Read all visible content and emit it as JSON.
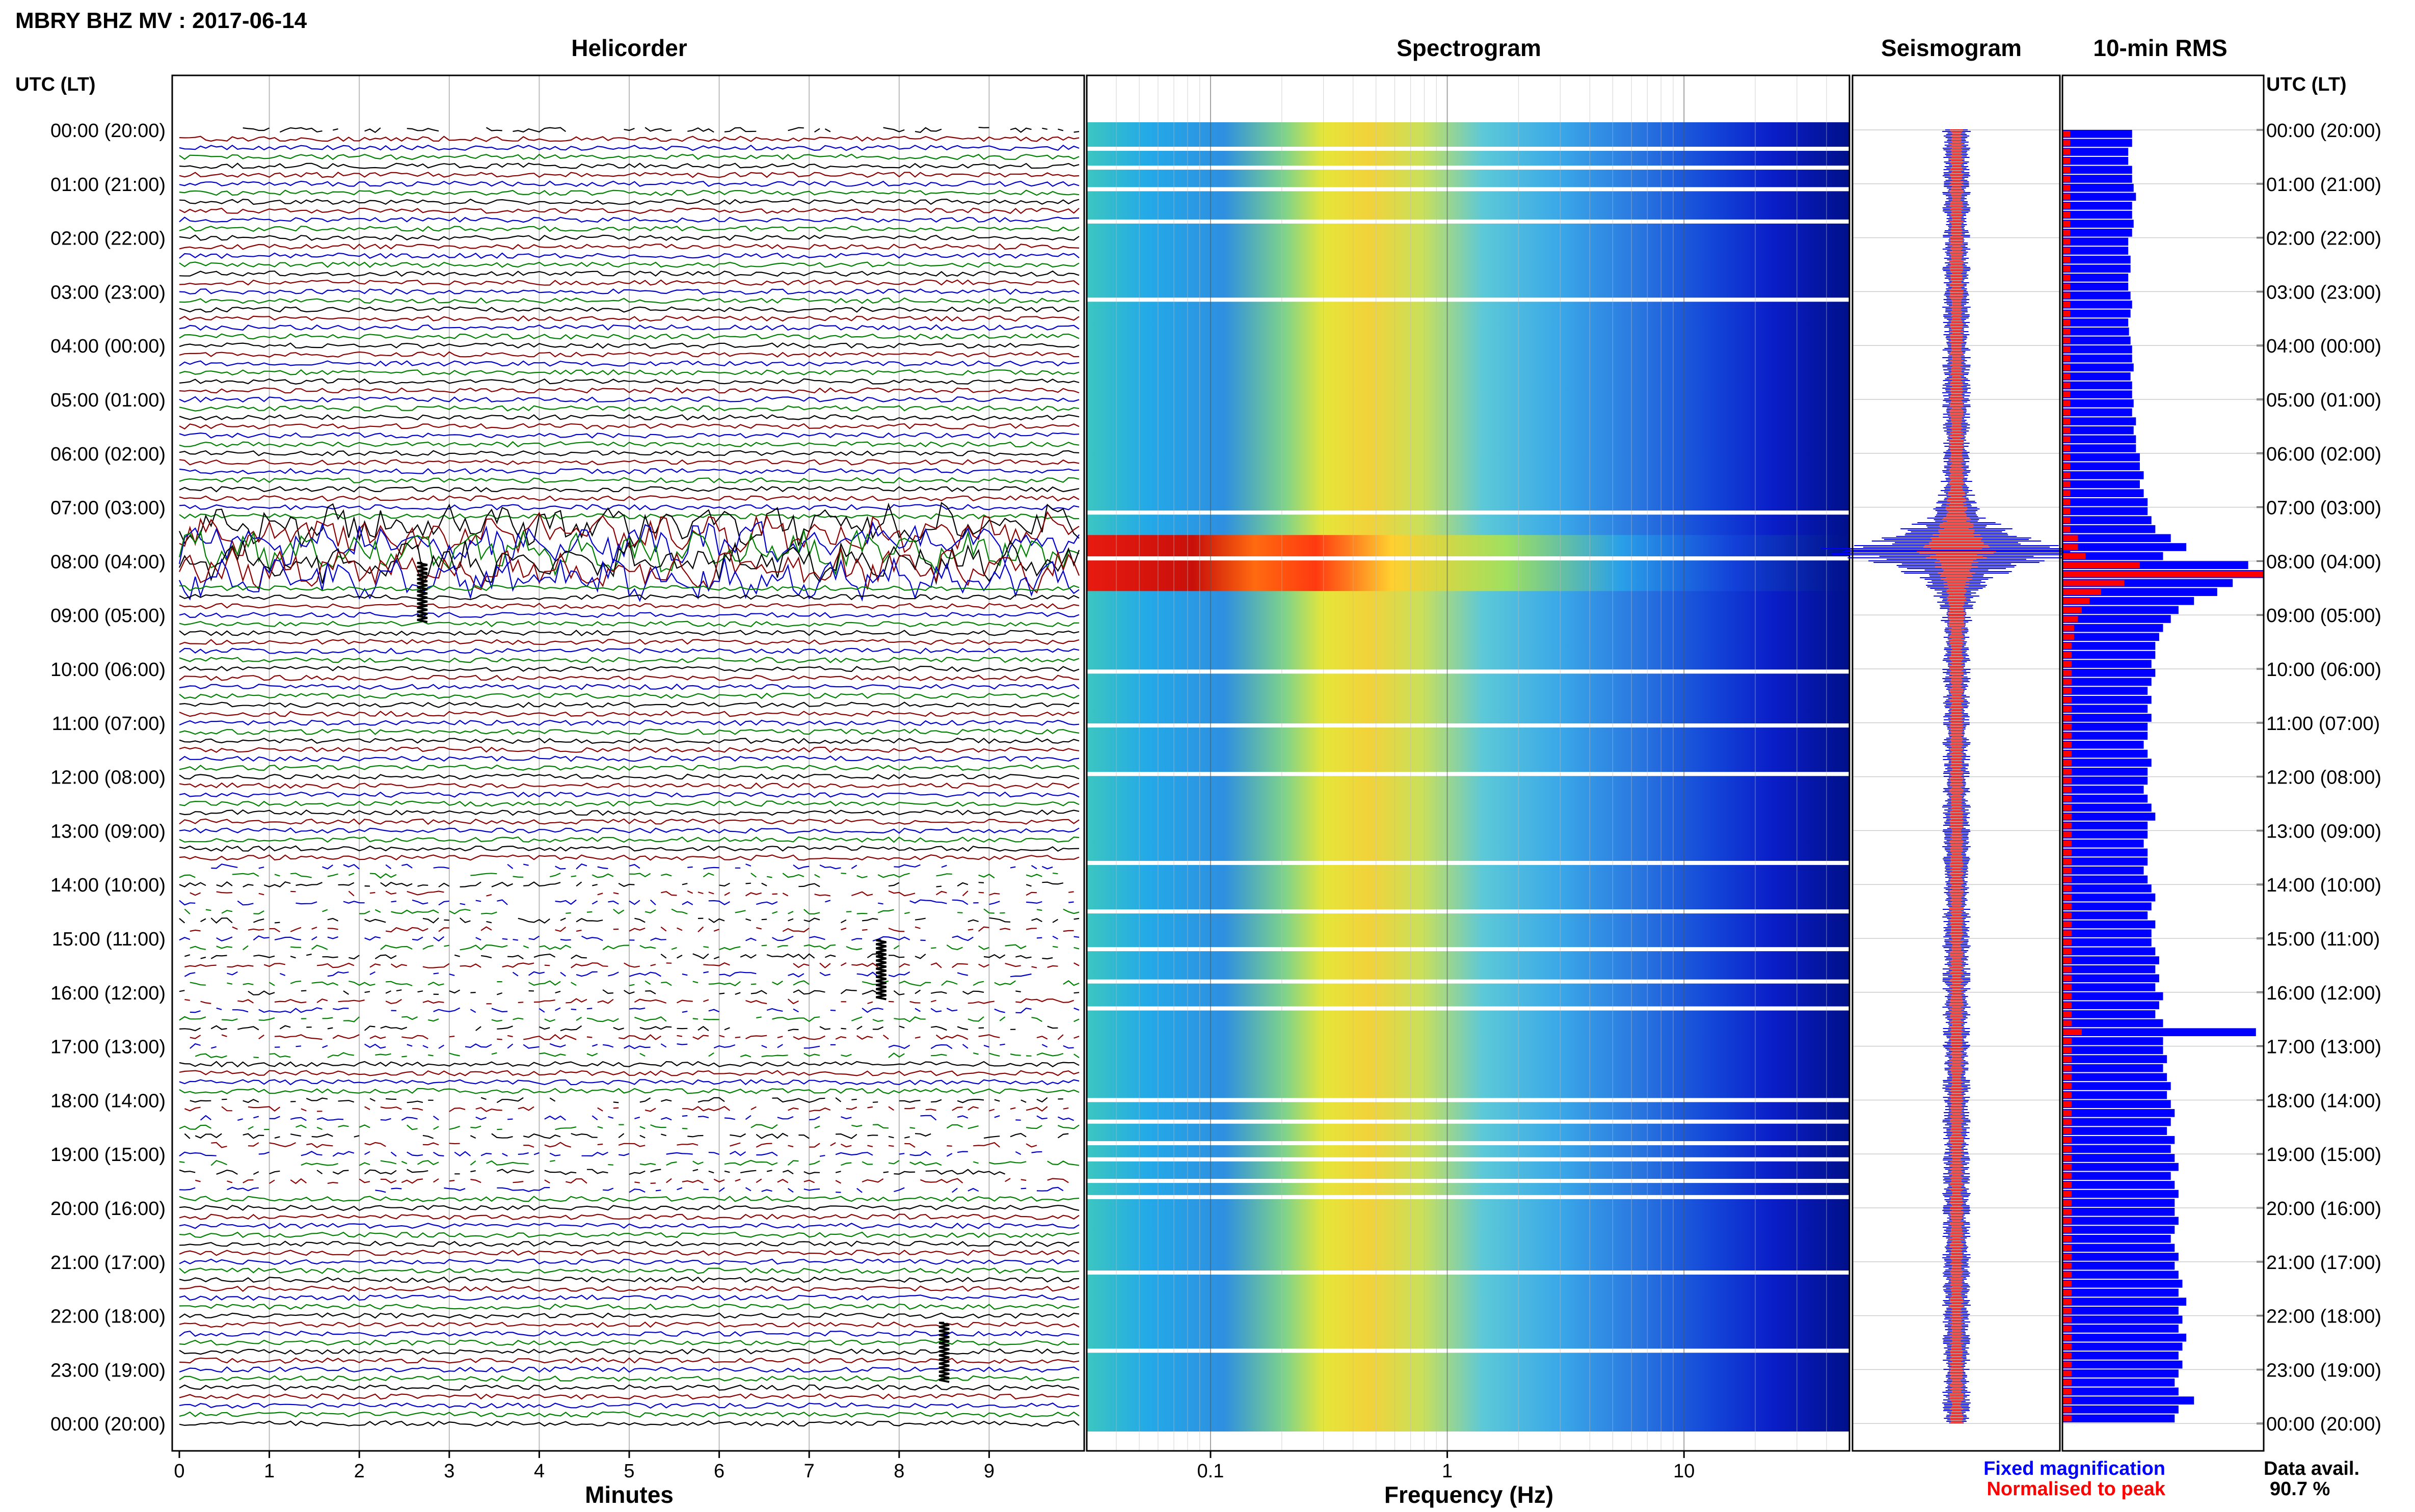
{
  "title": "MBRY BHZ MV : 2017-06-14",
  "time_axis_label": "UTC (LT)",
  "time_labels": [
    "00:00 (20:00)",
    "01:00 (21:00)",
    "02:00 (22:00)",
    "03:00 (23:00)",
    "04:00 (00:00)",
    "05:00 (01:00)",
    "06:00 (02:00)",
    "07:00 (03:00)",
    "08:00 (04:00)",
    "09:00 (05:00)",
    "10:00 (06:00)",
    "11:00 (07:00)",
    "12:00 (08:00)",
    "13:00 (09:00)",
    "14:00 (10:00)",
    "15:00 (11:00)",
    "16:00 (12:00)",
    "17:00 (13:00)",
    "18:00 (14:00)",
    "19:00 (15:00)",
    "20:00 (16:00)",
    "21:00 (17:00)",
    "22:00 (18:00)",
    "23:00 (19:00)",
    "00:00 (20:00)"
  ],
  "panels": {
    "helicorder": "Helicorder",
    "spectrogram": "Spectrogram",
    "seismogram": "Seismogram",
    "rms": "10-min RMS"
  },
  "legend": {
    "fixed": "Fixed magnification",
    "normalised": "Normalised to peak",
    "fixed_color": "#0000ff",
    "normalised_color": "#ff0000"
  },
  "data_availability": {
    "label": "Data avail.",
    "value": "90.7 %"
  },
  "chart_data": [
    {
      "type": "line",
      "panel": "helicorder",
      "xlabel": "Minutes",
      "xticks": [
        "0",
        "1",
        "2",
        "3",
        "4",
        "5",
        "6",
        "7",
        "8",
        "9"
      ],
      "xlim": [
        0,
        10
      ],
      "ylim_hours": [
        0,
        24
      ],
      "trace_colors": [
        "#000000",
        "#8b0000",
        "#0000cc",
        "#008000"
      ],
      "traces_per_hour": 6,
      "high_activity_hours": [
        7.2,
        8.4
      ],
      "events": [
        {
          "hour": 8.6,
          "minute": 2.7
        },
        {
          "hour": 15.6,
          "minute": 7.8
        },
        {
          "hour": 22.7,
          "minute": 8.5
        }
      ],
      "gap_hours": [
        [
          18.0,
          19.8
        ]
      ]
    },
    {
      "type": "heatmap",
      "panel": "spectrogram",
      "xlabel": "Frequency (Hz)",
      "xscale": "log",
      "xticks": [
        "0.1",
        "1",
        "10"
      ],
      "xlim": [
        0.03,
        50
      ],
      "ylim_hours": [
        0,
        24
      ],
      "peak_frequency_hz": 0.3,
      "strong_event_hour": 7.8,
      "gap_hours": [
        0.35,
        0.7,
        1.1,
        1.7,
        3.15,
        7.1,
        7.95,
        10.05,
        11.05,
        11.95,
        13.6,
        14.5,
        15.2,
        15.8,
        16.3,
        18.0,
        18.4,
        18.8,
        19.1,
        19.5,
        19.8,
        21.2,
        22.65
      ],
      "colormap": [
        "#00008b",
        "#0000ff",
        "#00bfff",
        "#40e0d0",
        "#adff2f",
        "#ffff00",
        "#ffa500",
        "#ff0000"
      ]
    },
    {
      "type": "line",
      "panel": "seismogram",
      "series": [
        {
          "name": "Fixed magnification",
          "color": "#0000ff"
        },
        {
          "name": "Normalised to peak",
          "color": "#ff0000"
        }
      ],
      "peak_hour": 7.8
    },
    {
      "type": "bar",
      "panel": "rms",
      "orientation": "horizontal",
      "bins_per_hour": 6,
      "ylim_hours": [
        0,
        24
      ],
      "fixed_rms": [
        0.9,
        0.9,
        0.85,
        0.85,
        0.9,
        0.9,
        0.92,
        0.95,
        0.9,
        0.9,
        0.92,
        0.9,
        0.85,
        0.85,
        0.88,
        0.88,
        0.85,
        0.85,
        0.88,
        0.9,
        0.88,
        0.85,
        0.86,
        0.88,
        0.9,
        0.9,
        0.92,
        0.88,
        0.9,
        0.9,
        0.92,
        0.9,
        0.95,
        0.92,
        0.95,
        0.95,
        1.0,
        1.0,
        1.05,
        1.0,
        1.05,
        1.1,
        1.1,
        1.15,
        1.2,
        1.4,
        1.6,
        1.3,
        2.4,
        2.6,
        2.2,
        2.0,
        1.7,
        1.5,
        1.4,
        1.3,
        1.25,
        1.2,
        1.2,
        1.15,
        1.2,
        1.15,
        1.1,
        1.15,
        1.1,
        1.15,
        1.1,
        1.1,
        1.05,
        1.1,
        1.15,
        1.1,
        1.1,
        1.05,
        1.1,
        1.15,
        1.2,
        1.1,
        1.1,
        1.05,
        1.1,
        1.1,
        1.05,
        1.1,
        1.15,
        1.2,
        1.15,
        1.1,
        1.2,
        1.15,
        1.15,
        1.2,
        1.25,
        1.2,
        1.25,
        1.2,
        1.3,
        1.25,
        1.2,
        1.3,
        2.5,
        1.3,
        1.3,
        1.35,
        1.3,
        1.35,
        1.4,
        1.35,
        1.4,
        1.45,
        1.4,
        1.35,
        1.45,
        1.4,
        1.45,
        1.5,
        1.4,
        1.45,
        1.5,
        1.45,
        1.45,
        1.5,
        1.45,
        1.4,
        1.45,
        1.5,
        1.45,
        1.5,
        1.55,
        1.5,
        1.6,
        1.5,
        1.55,
        1.5,
        1.6,
        1.55,
        1.5,
        1.55,
        1.5,
        1.45,
        1.5,
        1.7,
        1.5,
        1.45
      ],
      "normalised_rms": [
        0.1,
        0.1,
        0.1,
        0.1,
        0.1,
        0.1,
        0.1,
        0.1,
        0.1,
        0.1,
        0.1,
        0.1,
        0.1,
        0.1,
        0.1,
        0.1,
        0.1,
        0.1,
        0.1,
        0.1,
        0.1,
        0.1,
        0.1,
        0.1,
        0.1,
        0.1,
        0.1,
        0.1,
        0.1,
        0.1,
        0.1,
        0.1,
        0.1,
        0.1,
        0.1,
        0.1,
        0.1,
        0.1,
        0.1,
        0.1,
        0.1,
        0.1,
        0.1,
        0.1,
        0.1,
        0.2,
        0.2,
        0.3,
        1.0,
        2.6,
        0.8,
        0.5,
        0.35,
        0.25,
        0.2,
        0.15,
        0.15,
        0.12,
        0.12,
        0.12,
        0.12,
        0.12,
        0.12,
        0.12,
        0.12,
        0.12,
        0.12,
        0.12,
        0.12,
        0.12,
        0.12,
        0.12,
        0.12,
        0.12,
        0.12,
        0.12,
        0.12,
        0.12,
        0.12,
        0.12,
        0.12,
        0.12,
        0.12,
        0.12,
        0.12,
        0.12,
        0.12,
        0.12,
        0.12,
        0.12,
        0.12,
        0.12,
        0.12,
        0.12,
        0.12,
        0.12,
        0.12,
        0.12,
        0.12,
        0.12,
        0.25,
        0.12,
        0.12,
        0.12,
        0.12,
        0.12,
        0.12,
        0.12,
        0.12,
        0.12,
        0.12,
        0.12,
        0.12,
        0.12,
        0.12,
        0.12,
        0.12,
        0.12,
        0.12,
        0.12,
        0.12,
        0.12,
        0.12,
        0.12,
        0.12,
        0.12,
        0.12,
        0.12,
        0.12,
        0.12,
        0.12,
        0.12,
        0.12,
        0.12,
        0.12,
        0.12,
        0.12,
        0.12,
        0.12,
        0.12,
        0.12,
        0.12,
        0.12,
        0.12
      ],
      "xlim": [
        0,
        2.6
      ]
    }
  ]
}
